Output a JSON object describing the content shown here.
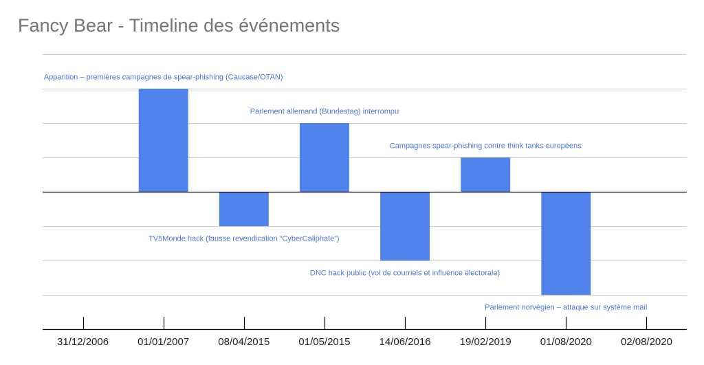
{
  "title": "Fancy Bear - Timeline des événements",
  "colors": {
    "bar": "#5183ec",
    "annotation": "#4a78e0",
    "grid": "#cccccc",
    "axis": "#000000",
    "title": "#757575"
  },
  "chart_data": {
    "type": "bar",
    "title": "Fancy Bear - Timeline des événements",
    "xlabel": "",
    "ylabel": "",
    "categories": [
      "31/12/2006",
      "01/01/2007",
      "08/04/2015",
      "01/05/2015",
      "14/06/2016",
      "19/02/2019",
      "01/08/2020",
      "02/08/2020"
    ],
    "values": [
      0,
      3,
      -1,
      2,
      -2,
      1,
      -3,
      0
    ],
    "annotations": [
      "",
      "Apparition – premières campagnes de spear-phishing (Caucase/OTAN)",
      "TV5Monde hack (fausse revendication “CyberCaliphate”)",
      "Parlement allemand (Bundestag) interrompu",
      "DNC hack public (vol de courriels et influence électorale)",
      "Campagnes spear-phishing contre think tanks européens",
      "Parlement norvégien – attaque sur système mail",
      ""
    ],
    "ylim": [
      -4,
      4
    ],
    "grid": true,
    "legend": "none"
  }
}
